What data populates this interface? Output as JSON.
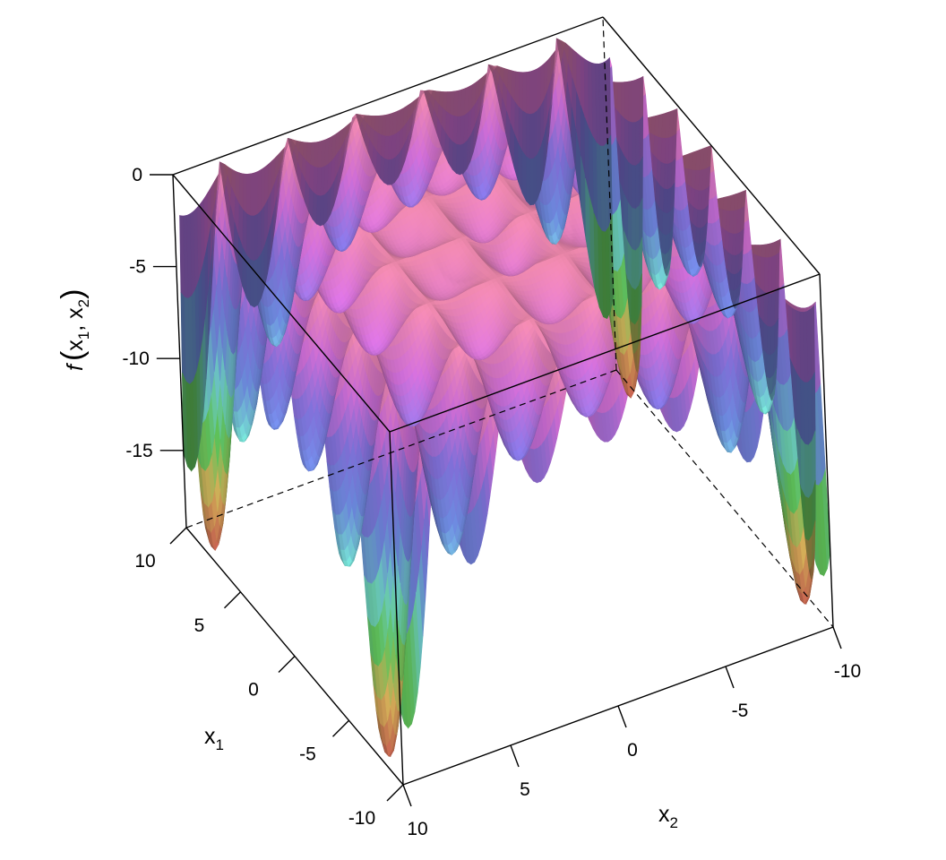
{
  "chart_data": {
    "type": "surface",
    "title": "",
    "xlabel": "x",
    "xlabel_sub": "1",
    "ylabel": "x",
    "ylabel_sub": "2",
    "zlabel_func": "f",
    "zlabel_open": "(",
    "zlabel_var1": "x",
    "zlabel_sub1": "1",
    "zlabel_sep": ", ",
    "zlabel_var2": "x",
    "zlabel_sub2": "2",
    "zlabel_close": ")",
    "x1_range": [
      -10,
      10
    ],
    "x2_range": [
      -10,
      10
    ],
    "z_range": [
      -19.2,
      0
    ],
    "x1_ticks": [
      {
        "value": 10,
        "label": "10"
      },
      {
        "value": 5,
        "label": "5"
      },
      {
        "value": 0,
        "label": "0"
      },
      {
        "value": -5,
        "label": "-5"
      },
      {
        "value": -10,
        "label": "-10"
      }
    ],
    "x2_ticks": [
      {
        "value": -10,
        "label": "-10"
      },
      {
        "value": -5,
        "label": "-5"
      },
      {
        "value": 0,
        "label": "0"
      },
      {
        "value": 5,
        "label": "5"
      },
      {
        "value": 10,
        "label": "10"
      }
    ],
    "z_ticks": [
      {
        "value": 0,
        "label": "0"
      },
      {
        "value": -5,
        "label": "-5"
      },
      {
        "value": -10,
        "label": "-10"
      },
      {
        "value": -15,
        "label": "-15"
      }
    ],
    "surface": "Holder table function: f(x1, x2) = -|sin(x1) cos(x2) exp(|1 - sqrt(x1^2 + x2^2)/pi|)|",
    "global_minima": [
      {
        "x1": 8.055,
        "x2": 9.665,
        "z": -19.2085
      },
      {
        "x1": -8.055,
        "x2": 9.665,
        "z": -19.2085
      },
      {
        "x1": 8.055,
        "x2": -9.665,
        "z": -19.2085
      },
      {
        "x1": -8.055,
        "x2": -9.665,
        "z": -19.2085
      }
    ],
    "colors": [
      "#b8584a",
      "#d9b25a",
      "#63c95c",
      "#6fd3c7",
      "#6a86d9",
      "#7e6fd6",
      "#c86ad0",
      "#de7fa0"
    ],
    "grid": false,
    "legend": "none"
  }
}
